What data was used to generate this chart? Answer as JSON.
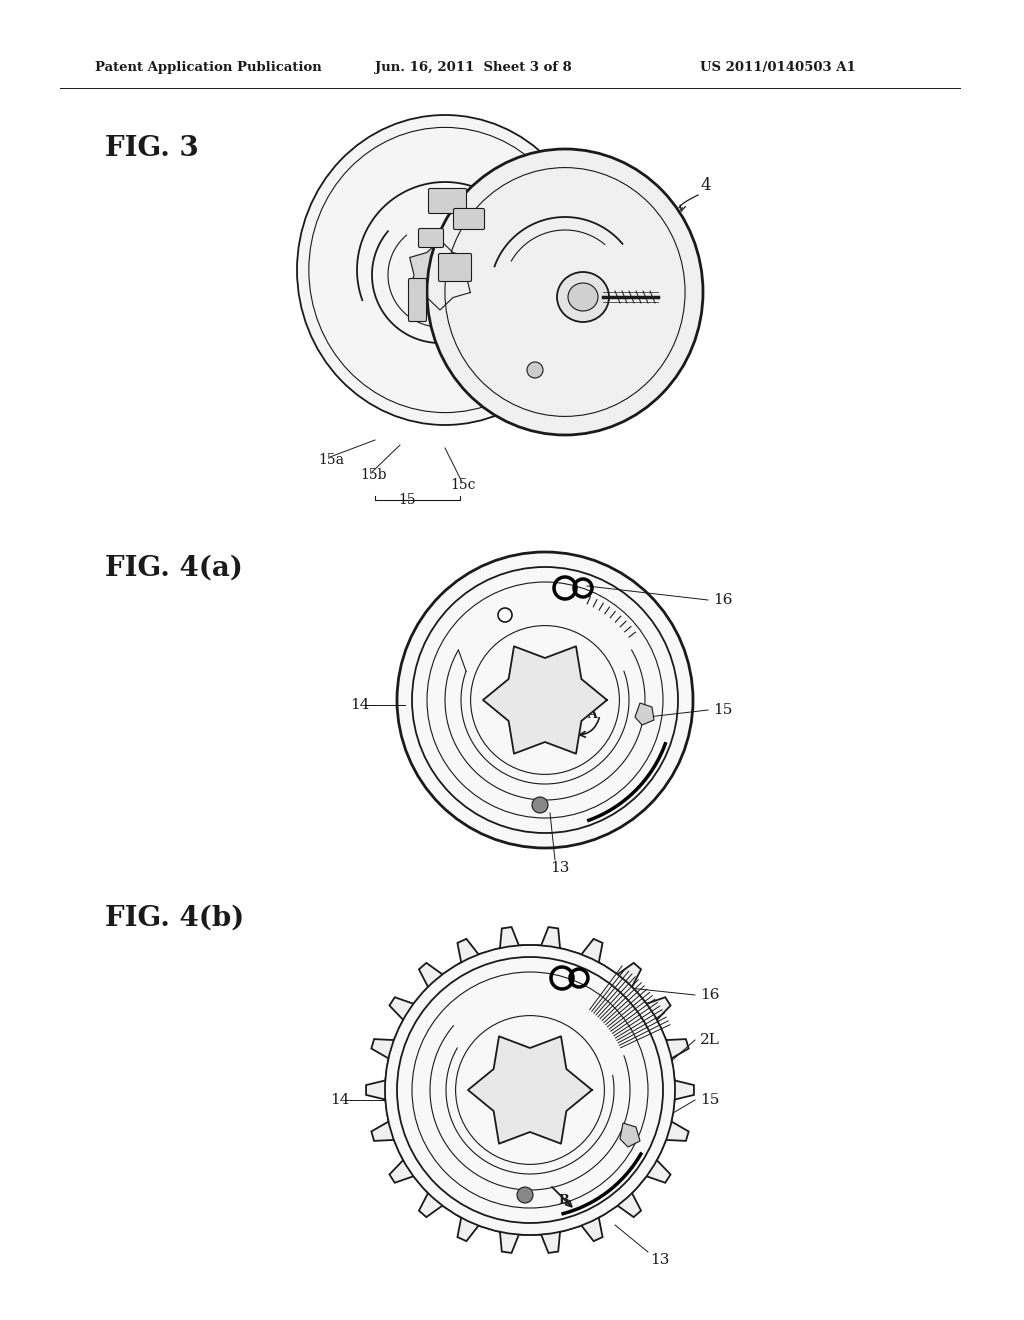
{
  "header_left": "Patent Application Publication",
  "header_middle": "Jun. 16, 2011  Sheet 3 of 8",
  "header_right": "US 2011/0140503 A1",
  "fig3_label": "FIG. 3",
  "fig4a_label": "FIG. 4(a)",
  "fig4b_label": "FIG. 4(b)",
  "bg_color": "#ffffff",
  "line_color": "#1a1a1a"
}
